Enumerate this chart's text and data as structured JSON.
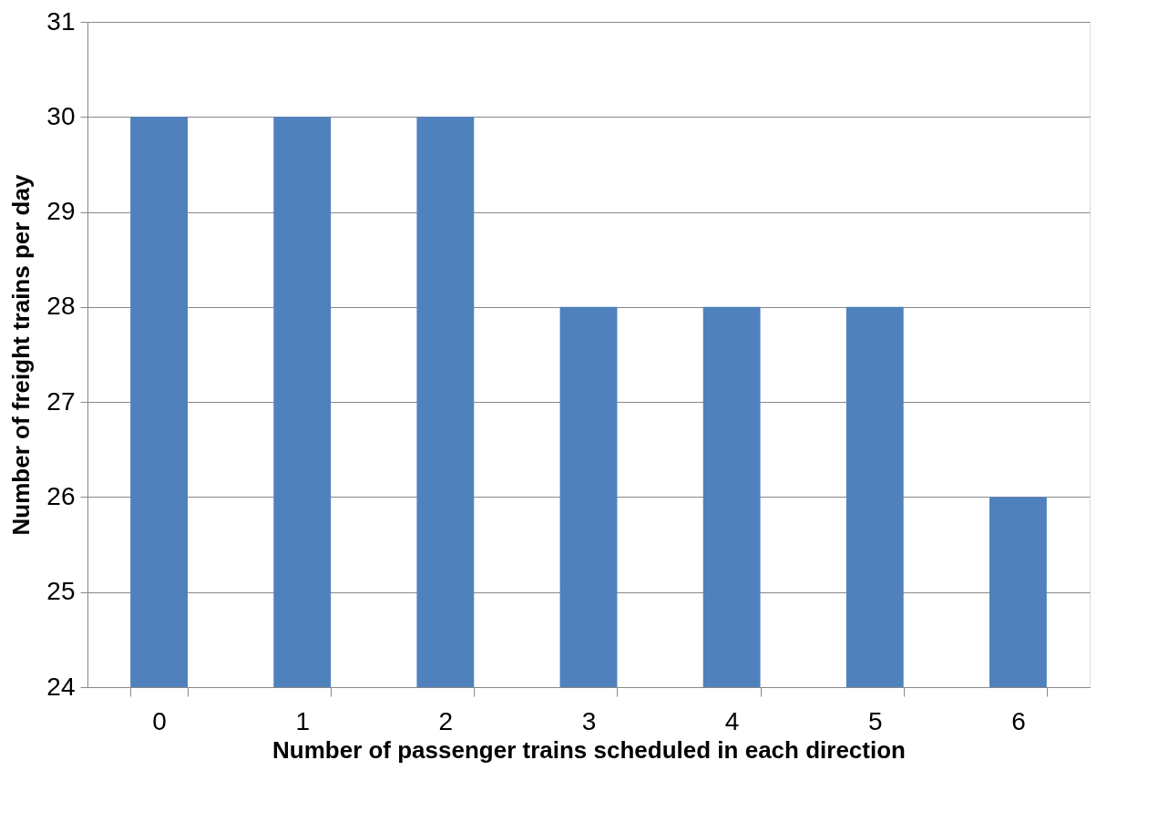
{
  "chart_data": {
    "type": "bar",
    "xlabel": "Number of passenger trains scheduled in each direction",
    "ylabel": "Number of freight trains per day",
    "categories": [
      "0",
      "1",
      "2",
      "3",
      "4",
      "5",
      "6"
    ],
    "values": [
      30,
      30,
      30,
      28,
      28,
      28,
      26
    ],
    "color": "#4f81bd",
    "ylim": [
      24,
      31
    ],
    "yticks": [
      24,
      25,
      26,
      27,
      28,
      29,
      30,
      31
    ],
    "grid": "y"
  }
}
